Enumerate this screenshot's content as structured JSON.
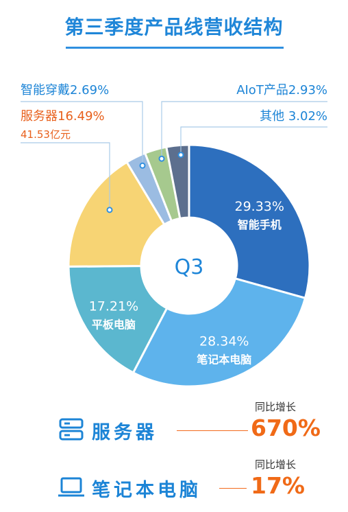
{
  "colors": {
    "accent": "#1f86d8",
    "highlight": "#f06a17"
  },
  "chart_data": {
    "type": "pie",
    "variant": "donut",
    "title": "第三季度产品线营收结构",
    "center_label": "Q3",
    "slices": [
      {
        "name": "智能手机",
        "value": 29.33,
        "label": "29.33%",
        "color": "#2d6fbe",
        "label_position": "inside"
      },
      {
        "name": "笔记本电脑",
        "value": 28.34,
        "label": "28.34%",
        "color": "#5eb3ec",
        "label_position": "inside"
      },
      {
        "name": "平板电脑",
        "value": 17.21,
        "label": "17.21%",
        "color": "#5bb7cf",
        "label_position": "inside"
      },
      {
        "name": "服务器",
        "value": 16.49,
        "label": "服务器16.49%",
        "sub_label": "41.53亿元",
        "color": "#f7d474",
        "label_position": "outside-left"
      },
      {
        "name": "智能穿戴",
        "value": 2.69,
        "label": "智能穿戴2.69%",
        "color": "#9bbce2",
        "label_position": "outside-left"
      },
      {
        "name": "AIoT产品",
        "value": 2.93,
        "label": "AIoT产品2.93%",
        "color": "#a6c98e",
        "label_position": "outside-right"
      },
      {
        "name": "其他",
        "value": 3.02,
        "label": "其他 3.02%",
        "color": "#5c6f8e",
        "label_position": "outside-right"
      }
    ]
  },
  "footer": {
    "rows": [
      {
        "label": "服务器",
        "caption": "同比增长",
        "value": "670%",
        "icon": "server-icon"
      },
      {
        "label": "笔记本电脑",
        "caption": "同比增长",
        "value": "17%",
        "icon": "laptop-icon"
      }
    ]
  }
}
